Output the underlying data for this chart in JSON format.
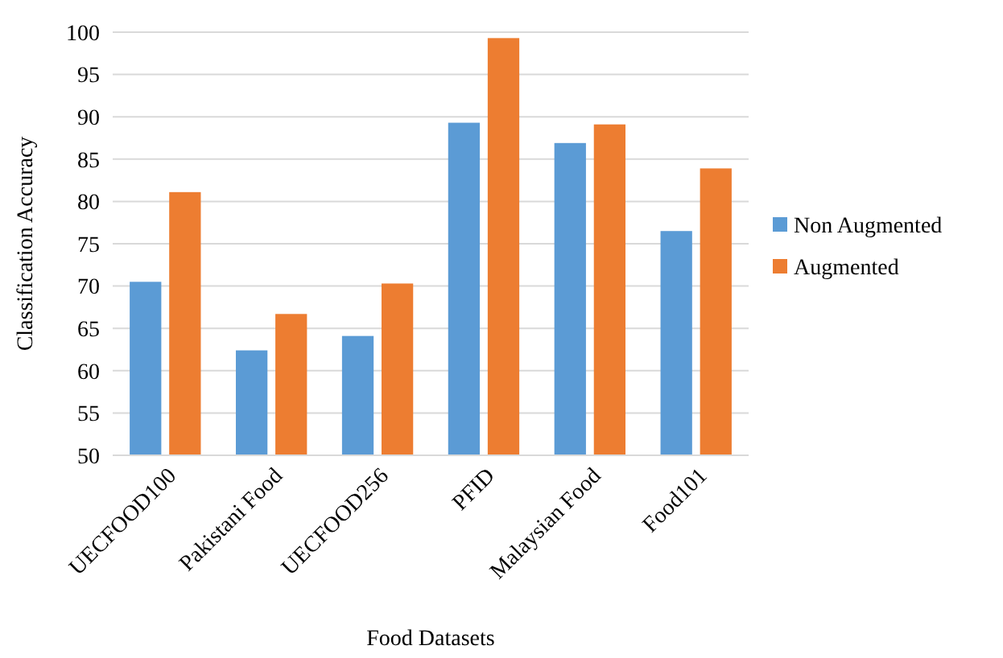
{
  "chart_data": {
    "type": "bar",
    "xlabel": "Food Datasets",
    "ylabel": "Classification  Accuracy",
    "categories": [
      "UECFOOD100",
      "Pakistani Food",
      "UECFOOD256",
      "PFID",
      "Malaysian Food",
      "Food101"
    ],
    "series": [
      {
        "name": "Non Augmented",
        "color": "#5b9bd5",
        "values": [
          70.5,
          62.4,
          64.1,
          89.3,
          86.9,
          76.5
        ]
      },
      {
        "name": "Augmented",
        "color": "#ed7d31",
        "values": [
          81.1,
          66.7,
          70.3,
          99.3,
          89.1,
          83.9
        ]
      }
    ],
    "ylim": [
      50,
      100
    ],
    "yticks": [
      50,
      55,
      60,
      65,
      70,
      75,
      80,
      85,
      90,
      95,
      100
    ],
    "grid": "y",
    "legend": "right"
  }
}
